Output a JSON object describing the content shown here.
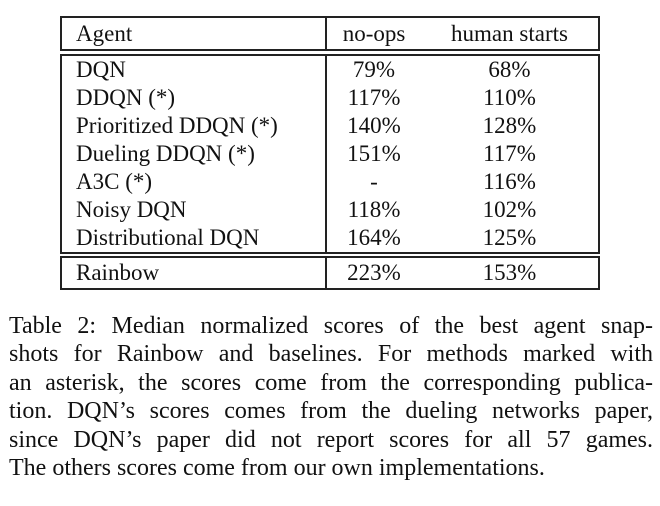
{
  "colors": {
    "background": "#ffffff",
    "text": "#111111",
    "rule": "#222222"
  },
  "table": {
    "columns": [
      "Agent",
      "no-ops",
      "human starts"
    ],
    "rows": [
      {
        "agent": "DQN",
        "no_ops": "79%",
        "human_starts": "68%"
      },
      {
        "agent": "DDQN (*)",
        "no_ops": "117%",
        "human_starts": "110%"
      },
      {
        "agent": "Prioritized DDQN (*)",
        "no_ops": "140%",
        "human_starts": "128%"
      },
      {
        "agent": "Dueling DDQN (*)",
        "no_ops": "151%",
        "human_starts": "117%"
      },
      {
        "agent": "A3C (*)",
        "no_ops": "-",
        "human_starts": "116%"
      },
      {
        "agent": "Noisy DQN",
        "no_ops": "118%",
        "human_starts": "102%"
      },
      {
        "agent": "Distributional DQN",
        "no_ops": "164%",
        "human_starts": "125%"
      }
    ],
    "highlight_row": {
      "agent": "Rainbow",
      "no_ops": "223%",
      "human_starts": "153%"
    }
  },
  "caption": {
    "lines": [
      "Table 2: Median normalized scores of the best agent snap-",
      "shots for Rainbow and baselines. For methods marked with",
      "an asterisk, the scores come from the corresponding publica-",
      "tion. DQN’s scores comes from the dueling networks paper,",
      "since DQN’s paper did not report scores for all 57 games.",
      "The others scores come from our own implementations."
    ]
  }
}
